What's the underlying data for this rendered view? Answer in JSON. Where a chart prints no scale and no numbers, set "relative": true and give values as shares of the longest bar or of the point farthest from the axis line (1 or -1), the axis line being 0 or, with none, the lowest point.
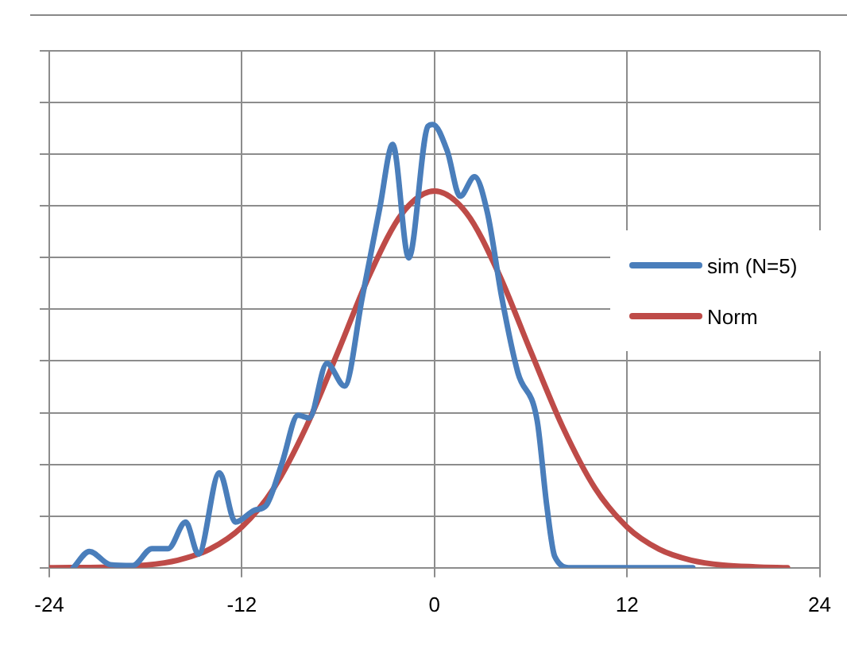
{
  "chart_data": {
    "type": "line",
    "relative": true,
    "xlim": [
      -24,
      24
    ],
    "xticks": [
      -24,
      -12,
      0,
      12,
      24
    ],
    "grid": true,
    "legend": "right",
    "series": [
      {
        "name": "sim (N=5)",
        "color": "#4a7ebb",
        "x": [
          -22.5,
          -21.5,
          -20.2,
          -18.8,
          -17.6,
          -16.6,
          -15.5,
          -14.7,
          -13.4,
          -12.4,
          -11.2,
          -10.5,
          -9.5,
          -8.5,
          -7.8,
          -6.7,
          -5.6,
          -4.5,
          -3.4,
          -2.6,
          -1.6,
          -0.4,
          -0.1,
          0.8,
          1.6,
          2.5,
          3.3,
          4.2,
          5.2,
          6.4,
          7.0,
          7.5,
          8.5,
          16.1
        ],
        "values": [
          0,
          0.037,
          0.007,
          0.005,
          0.043,
          0.043,
          0.103,
          0.031,
          0.214,
          0.103,
          0.13,
          0.14,
          0.236,
          0.344,
          0.338,
          0.461,
          0.41,
          0.609,
          0.813,
          0.955,
          0.699,
          0.996,
          1,
          0.94,
          0.838,
          0.882,
          0.801,
          0.609,
          0.44,
          0.332,
          0.14,
          0.025,
          0,
          0
        ]
      },
      {
        "name": "Norm",
        "color": "#be4b48",
        "x": [
          -24,
          -20,
          -18,
          -16,
          -14,
          -12,
          -10,
          -8,
          -6,
          -4,
          -2,
          0,
          2,
          4,
          6,
          8,
          10,
          12,
          14,
          16,
          18,
          20,
          22
        ],
        "values": [
          0,
          0.002,
          0.006,
          0.017,
          0.042,
          0.092,
          0.18,
          0.317,
          0.488,
          0.664,
          0.8,
          0.85,
          0.8,
          0.664,
          0.488,
          0.317,
          0.18,
          0.092,
          0.042,
          0.017,
          0.006,
          0.002,
          0
        ]
      }
    ]
  }
}
